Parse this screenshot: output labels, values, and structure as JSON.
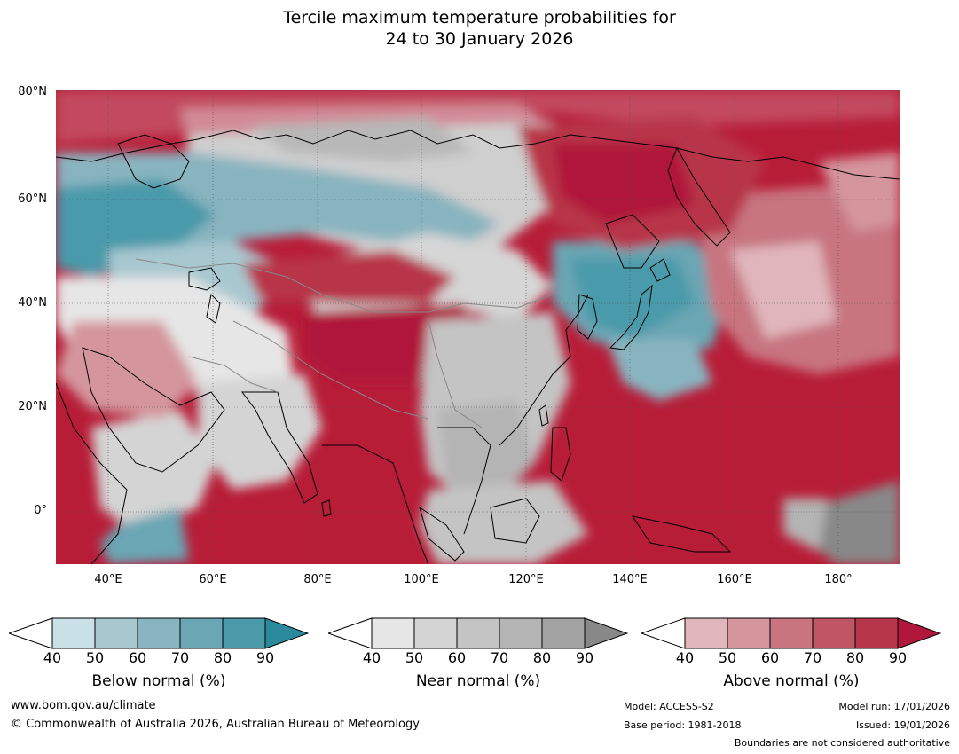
{
  "title": {
    "line1": "Tercile maximum temperature probabilities for",
    "line2": "24 to 30 January 2026"
  },
  "map": {
    "lat_labels": [
      "80°N",
      "60°N",
      "40°N",
      "20°N",
      "0°"
    ],
    "lon_labels": [
      "40°E",
      "60°E",
      "80°E",
      "100°E",
      "120°E",
      "140°E",
      "160°E",
      "180°"
    ],
    "ocean_color": "#b81d38",
    "land_outline_color": "#000000",
    "border_color": "#888888",
    "lon_range": [
      30,
      191
    ],
    "lat_range": [
      -10,
      80
    ],
    "gridlines": true
  },
  "colorbars": [
    {
      "title": "Below normal (%)",
      "ticks": [
        "40",
        "50",
        "60",
        "70",
        "80",
        "90"
      ],
      "colors": [
        "#ffffff",
        "#c8e0e6",
        "#a8c8d0",
        "#88b4c0",
        "#6aa6b4",
        "#4a9aaa",
        "#2a8a9c"
      ]
    },
    {
      "title": "Near normal (%)",
      "ticks": [
        "40",
        "50",
        "60",
        "70",
        "80",
        "90"
      ],
      "colors": [
        "#ffffff",
        "#e6e6e6",
        "#d4d4d4",
        "#c4c4c4",
        "#b4b4b4",
        "#a2a2a2",
        "#888888"
      ]
    },
    {
      "title": "Above normal (%)",
      "ticks": [
        "40",
        "50",
        "60",
        "70",
        "80",
        "90"
      ],
      "colors": [
        "#ffffff",
        "#e0b6bc",
        "#d4959c",
        "#c87580",
        "#c05566",
        "#b8364a",
        "#b0173a"
      ]
    }
  ],
  "footer": {
    "url": "www.bom.gov.au/climate",
    "copyright": "© Commonwealth of Australia 2026, Australian Bureau of Meteorology",
    "model": "Model: ACCESS-S2",
    "base_period": "Base period: 1981-2018",
    "model_run": "Model run: 17/01/2026",
    "issued": "Issued: 19/01/2026",
    "disclaimer": "Boundaries are not considered authoritative"
  }
}
